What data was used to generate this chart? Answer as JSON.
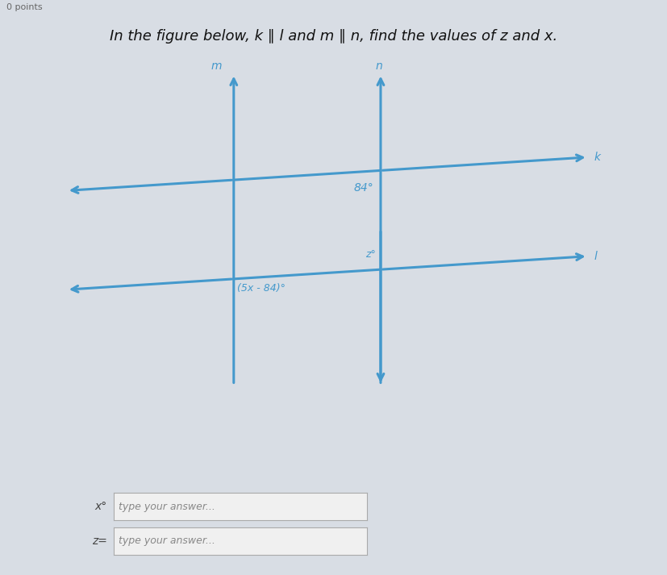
{
  "title": "In the figure below, k ∥ l and m ∥ n, find the values of z and x.",
  "subtitle": "0 points",
  "bg_color": "#d8dde4",
  "diagram_bg": "#e8ecf0",
  "line_color": "#4499cc",
  "text_color": "#333333",
  "title_color": "#111111",
  "angle1_label": "84°",
  "angle2_label": "z°",
  "angle3_label": "(5x - 84)°",
  "line_k_label": "k",
  "line_l_label": "l",
  "line_m_label": "m",
  "line_n_label": "n",
  "input_label1": "x°",
  "input_label2": "z=",
  "input_placeholder": "type your answer...",
  "font_size_title": 13,
  "font_size_labels": 10,
  "font_size_angles": 9
}
